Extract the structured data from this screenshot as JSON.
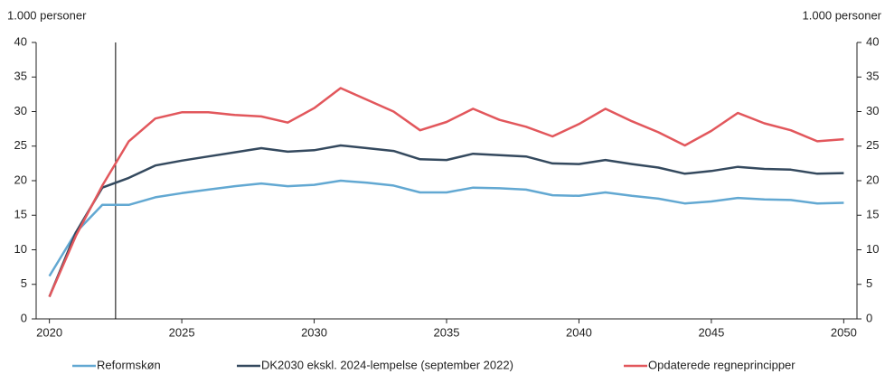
{
  "chart_data": {
    "type": "line",
    "y_label": "1.000 personer",
    "y2_label": "1.000 personer",
    "x": [
      2020,
      2021,
      2022,
      2023,
      2024,
      2025,
      2026,
      2027,
      2028,
      2029,
      2030,
      2031,
      2032,
      2033,
      2034,
      2035,
      2036,
      2037,
      2038,
      2039,
      2040,
      2041,
      2042,
      2043,
      2044,
      2045,
      2046,
      2047,
      2048,
      2049,
      2050
    ],
    "xlim": [
      2019.5,
      2050.5
    ],
    "xticks": [
      2020,
      2025,
      2030,
      2035,
      2040,
      2045,
      2050
    ],
    "ylim": [
      0,
      40
    ],
    "yticks": [
      0,
      5,
      10,
      15,
      20,
      25,
      30,
      35,
      40
    ],
    "y2lim": [
      0,
      40
    ],
    "y2ticks": [
      0,
      5,
      10,
      15,
      20,
      25,
      30,
      35,
      40
    ],
    "vline_x": 2022.5,
    "legend": "bottom",
    "series": [
      {
        "name": "Reformskøn",
        "color": "#62a8d2",
        "values": [
          6.2,
          12.5,
          16.5,
          16.5,
          17.6,
          18.2,
          18.7,
          19.2,
          19.6,
          19.2,
          19.4,
          20.0,
          19.7,
          19.3,
          18.3,
          18.3,
          19.0,
          18.9,
          18.7,
          17.9,
          17.8,
          18.3,
          17.8,
          17.4,
          16.7,
          17.0,
          17.5,
          17.3,
          17.2,
          16.7,
          16.8
        ]
      },
      {
        "name": "DK2030 ekskl. 2024-lempelse (september 2022)",
        "color": "#34495e",
        "values": [
          3.2,
          12.5,
          19.0,
          20.4,
          22.2,
          22.9,
          23.5,
          24.1,
          24.7,
          24.2,
          24.4,
          25.1,
          24.7,
          24.3,
          23.1,
          23.0,
          23.9,
          23.7,
          23.5,
          22.5,
          22.4,
          23.0,
          22.4,
          21.9,
          21.0,
          21.4,
          22.0,
          21.7,
          21.6,
          21.0,
          21.1
        ]
      },
      {
        "name": "Opdaterede regneprincipper",
        "color": "#e2575c",
        "values": [
          3.2,
          12.0,
          19.3,
          25.7,
          29.0,
          29.9,
          29.9,
          29.5,
          29.3,
          28.4,
          30.5,
          33.4,
          31.7,
          30.0,
          27.3,
          28.5,
          30.4,
          28.8,
          27.8,
          26.4,
          28.2,
          30.4,
          28.6,
          27.0,
          25.1,
          27.2,
          29.8,
          28.3,
          27.3,
          25.7,
          26.0
        ]
      }
    ]
  }
}
